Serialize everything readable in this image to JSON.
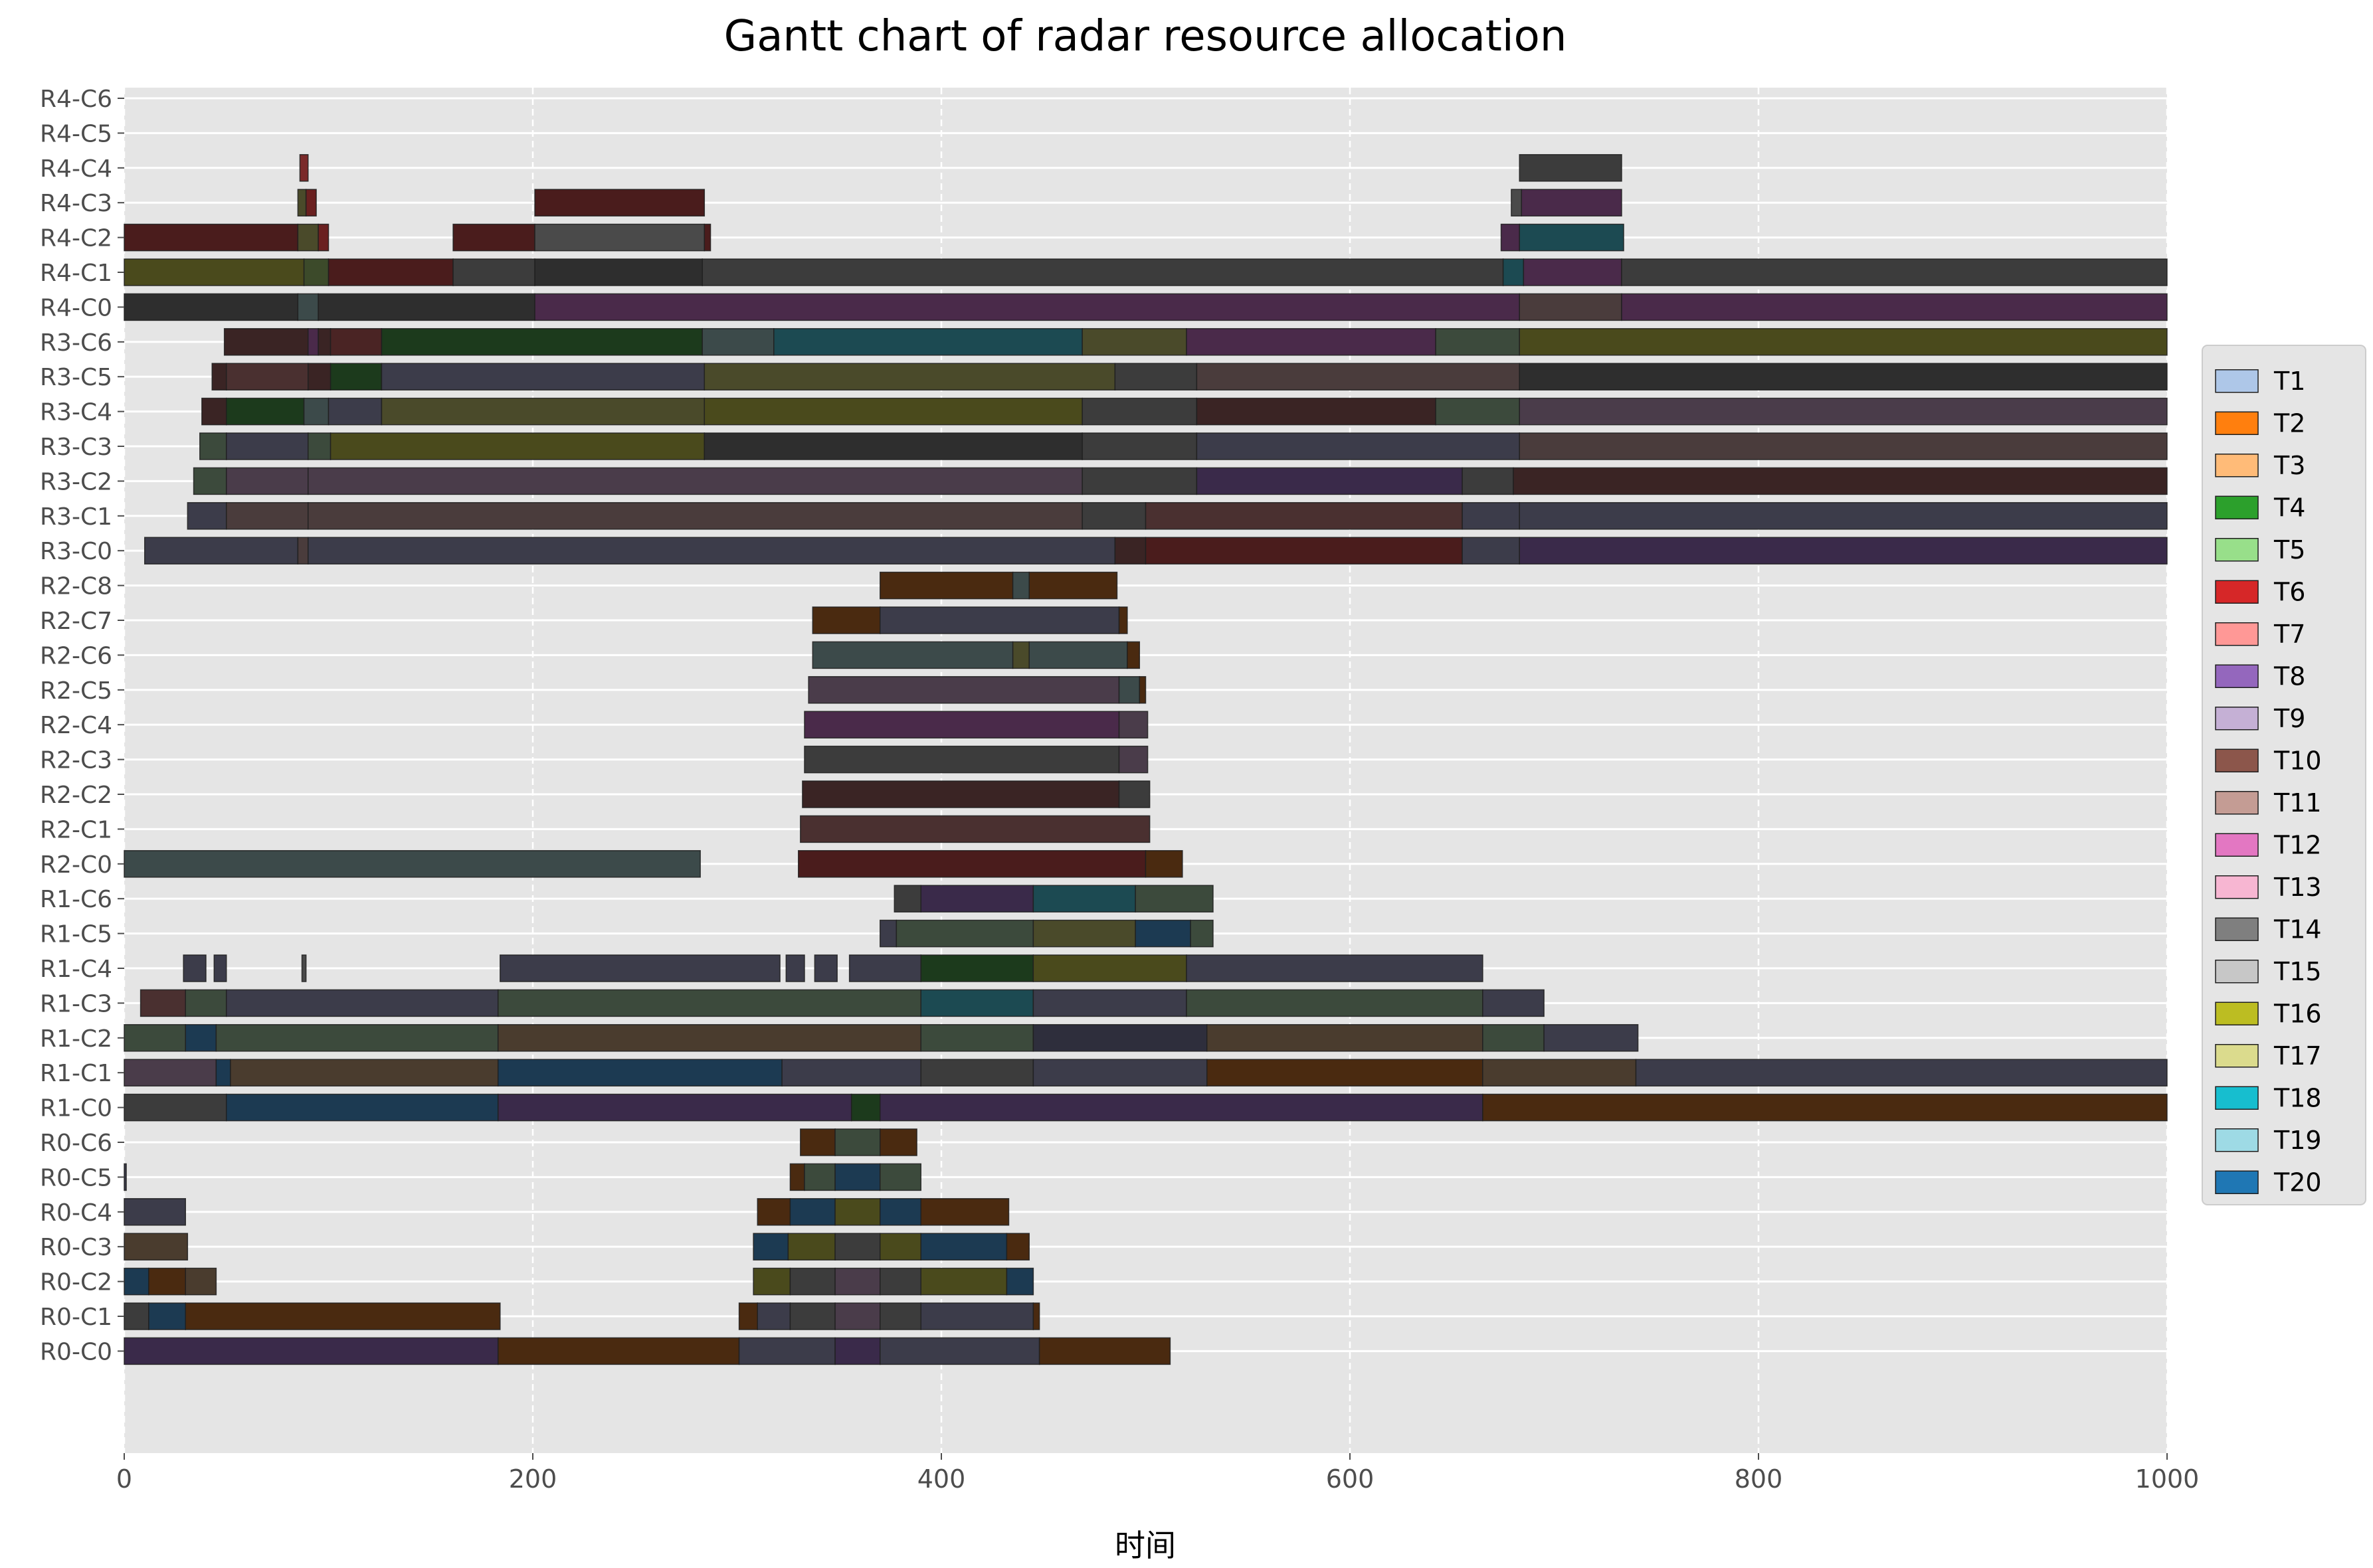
{
  "chart_data": {
    "type": "gantt",
    "title": "Gantt chart of radar resource allocation",
    "xlabel": "时间",
    "ylabel": "",
    "xlim": [
      0,
      1000
    ],
    "xticks": [
      0,
      200,
      400,
      600,
      800,
      1000
    ],
    "grid": true,
    "legend_position": "center-right",
    "rows": [
      "R4-C6",
      "R4-C5",
      "R4-C4",
      "R4-C3",
      "R4-C2",
      "R4-C1",
      "R4-C0",
      "R3-C6",
      "R3-C5",
      "R3-C4",
      "R3-C3",
      "R3-C2",
      "R3-C1",
      "R3-C0",
      "R2-C8",
      "R2-C7",
      "R2-C6",
      "R2-C5",
      "R2-C4",
      "R2-C3",
      "R2-C2",
      "R2-C1",
      "R2-C0",
      "R1-C6",
      "R1-C5",
      "R1-C4",
      "R1-C3",
      "R1-C2",
      "R1-C1",
      "R1-C0",
      "R0-C6",
      "R0-C5",
      "R0-C4",
      "R0-C3",
      "R0-C2",
      "R0-C1",
      "R0-C0"
    ],
    "legend": [
      {
        "name": "T1",
        "color": "#aec7e8"
      },
      {
        "name": "T2",
        "color": "#ff7f0e"
      },
      {
        "name": "T3",
        "color": "#ffbb78"
      },
      {
        "name": "T4",
        "color": "#2ca02c"
      },
      {
        "name": "T5",
        "color": "#98df8a"
      },
      {
        "name": "T6",
        "color": "#d62728"
      },
      {
        "name": "T7",
        "color": "#ff9896"
      },
      {
        "name": "T8",
        "color": "#9467bd"
      },
      {
        "name": "T9",
        "color": "#c5b0d5"
      },
      {
        "name": "T10",
        "color": "#8c564b"
      },
      {
        "name": "T11",
        "color": "#c49c94"
      },
      {
        "name": "T12",
        "color": "#e377c2"
      },
      {
        "name": "T13",
        "color": "#f7b6d2"
      },
      {
        "name": "T14",
        "color": "#7f7f7f"
      },
      {
        "name": "T15",
        "color": "#c7c7c7"
      },
      {
        "name": "T16",
        "color": "#bcbd22"
      },
      {
        "name": "T17",
        "color": "#dbdb8d"
      },
      {
        "name": "T18",
        "color": "#17becf"
      },
      {
        "name": "T19",
        "color": "#9edae5"
      },
      {
        "name": "T20",
        "color": "#1f77b4"
      }
    ],
    "segments": [
      [
        "R4-C4",
        86,
        90,
        "#7a2a2a"
      ],
      [
        "R4-C4",
        683,
        733,
        "#3c3c3c"
      ],
      [
        "R4-C3",
        85,
        89,
        "#4a4a2a"
      ],
      [
        "R4-C3",
        89,
        94,
        "#6a2020"
      ],
      [
        "R4-C3",
        201,
        284,
        "#4a1c1c"
      ],
      [
        "R4-C3",
        679,
        684,
        "#4a4a4a"
      ],
      [
        "R4-C3",
        684,
        733,
        "#4a2a4a"
      ],
      [
        "R4-C2",
        0,
        85,
        "#4a1c1c"
      ],
      [
        "R4-C2",
        85,
        95,
        "#4a4a2a"
      ],
      [
        "R4-C2",
        95,
        100,
        "#6a2020"
      ],
      [
        "R4-C2",
        161,
        201,
        "#4a1c1c"
      ],
      [
        "R4-C2",
        201,
        284,
        "#4a4a4a"
      ],
      [
        "R4-C2",
        284,
        287,
        "#4a1c1c"
      ],
      [
        "R4-C2",
        674,
        683,
        "#4a2a4a"
      ],
      [
        "R4-C2",
        683,
        734,
        "#1c4a52"
      ],
      [
        "R4-C1",
        0,
        88,
        "#4a4a1c"
      ],
      [
        "R4-C1",
        88,
        100,
        "#3c4a2a"
      ],
      [
        "R4-C1",
        100,
        161,
        "#4a1c1c"
      ],
      [
        "R4-C1",
        161,
        201,
        "#3c3c3c"
      ],
      [
        "R4-C1",
        201,
        283,
        "#2e2e2e"
      ],
      [
        "R4-C1",
        283,
        675,
        "#3c3c3c"
      ],
      [
        "R4-C1",
        675,
        685,
        "#1c4a52"
      ],
      [
        "R4-C1",
        685,
        733,
        "#4a2a4a"
      ],
      [
        "R4-C1",
        733,
        1000,
        "#3c3c3c"
      ],
      [
        "R4-C0",
        0,
        85,
        "#2e2e2e"
      ],
      [
        "R4-C0",
        85,
        95,
        "#3c4a4a"
      ],
      [
        "R4-C0",
        95,
        201,
        "#2e2e2e"
      ],
      [
        "R4-C0",
        201,
        683,
        "#4a2a4a"
      ],
      [
        "R4-C0",
        683,
        733,
        "#4a3c3c"
      ],
      [
        "R4-C0",
        733,
        1000,
        "#4a2a4a"
      ],
      [
        "R3-C6",
        49,
        90,
        "#3a2424"
      ],
      [
        "R3-C6",
        90,
        95,
        "#4a2a4a"
      ],
      [
        "R3-C6",
        95,
        101,
        "#3a2424"
      ],
      [
        "R3-C6",
        101,
        126,
        "#4a2424"
      ],
      [
        "R3-C6",
        126,
        283,
        "#1c3a1c"
      ],
      [
        "R3-C6",
        283,
        318,
        "#3c4a4a"
      ],
      [
        "R3-C6",
        318,
        469,
        "#1c4a52"
      ],
      [
        "R3-C6",
        469,
        520,
        "#4a4a2a"
      ],
      [
        "R3-C6",
        520,
        642,
        "#4a2a4a"
      ],
      [
        "R3-C6",
        642,
        683,
        "#3c4a3c"
      ],
      [
        "R3-C6",
        683,
        1000,
        "#4a4a1c"
      ],
      [
        "R3-C5",
        43,
        50,
        "#3a2424"
      ],
      [
        "R3-C5",
        50,
        90,
        "#4a3030"
      ],
      [
        "R3-C5",
        90,
        101,
        "#3a2424"
      ],
      [
        "R3-C5",
        101,
        126,
        "#1c3a1c"
      ],
      [
        "R3-C5",
        126,
        284,
        "#3c3c4a"
      ],
      [
        "R3-C5",
        284,
        485,
        "#4a4a2a"
      ],
      [
        "R3-C5",
        485,
        525,
        "#3c3c3c"
      ],
      [
        "R3-C5",
        525,
        683,
        "#4a3c3c"
      ],
      [
        "R3-C5",
        683,
        1000,
        "#2e2e2e"
      ],
      [
        "R3-C4",
        38,
        50,
        "#3a2424"
      ],
      [
        "R3-C4",
        50,
        88,
        "#1c3a1c"
      ],
      [
        "R3-C4",
        88,
        100,
        "#3c4a4a"
      ],
      [
        "R3-C4",
        100,
        126,
        "#3c3c4a"
      ],
      [
        "R3-C4",
        126,
        284,
        "#4a4a2a"
      ],
      [
        "R3-C4",
        284,
        469,
        "#4a4a1c"
      ],
      [
        "R3-C4",
        469,
        525,
        "#3c3c3c"
      ],
      [
        "R3-C4",
        525,
        642,
        "#3a2424"
      ],
      [
        "R3-C4",
        642,
        683,
        "#3c4a3c"
      ],
      [
        "R3-C4",
        683,
        1000,
        "#4a3c4a"
      ],
      [
        "R3-C3",
        37,
        50,
        "#3c4a3c"
      ],
      [
        "R3-C3",
        50,
        90,
        "#3c3c4a"
      ],
      [
        "R3-C3",
        90,
        101,
        "#3c4a3c"
      ],
      [
        "R3-C3",
        101,
        284,
        "#4a4a1c"
      ],
      [
        "R3-C3",
        284,
        469,
        "#2e2e2e"
      ],
      [
        "R3-C3",
        469,
        525,
        "#3c3c3c"
      ],
      [
        "R3-C3",
        525,
        683,
        "#3c3c4a"
      ],
      [
        "R3-C3",
        683,
        1000,
        "#4a3c3c"
      ],
      [
        "R3-C2",
        34,
        50,
        "#3c4a3c"
      ],
      [
        "R3-C2",
        50,
        90,
        "#4a3c4a"
      ],
      [
        "R3-C2",
        90,
        469,
        "#4a3c4a"
      ],
      [
        "R3-C2",
        469,
        525,
        "#3c3c3c"
      ],
      [
        "R3-C2",
        525,
        655,
        "#3a2a4a"
      ],
      [
        "R3-C2",
        655,
        680,
        "#3c3c3c"
      ],
      [
        "R3-C2",
        680,
        1000,
        "#3a2424"
      ],
      [
        "R3-C1",
        31,
        50,
        "#3c3c4a"
      ],
      [
        "R3-C1",
        50,
        90,
        "#4a3c3c"
      ],
      [
        "R3-C1",
        90,
        469,
        "#4a3c3c"
      ],
      [
        "R3-C1",
        469,
        500,
        "#3c3c3c"
      ],
      [
        "R3-C1",
        500,
        655,
        "#4a3030"
      ],
      [
        "R3-C1",
        655,
        683,
        "#3c3c4a"
      ],
      [
        "R3-C1",
        683,
        1000,
        "#3c3c4a"
      ],
      [
        "R3-C0",
        10,
        85,
        "#3c3c4a"
      ],
      [
        "R3-C0",
        85,
        90,
        "#4a3c3c"
      ],
      [
        "R3-C0",
        90,
        485,
        "#3c3c4a"
      ],
      [
        "R3-C0",
        485,
        500,
        "#3a2424"
      ],
      [
        "R3-C0",
        500,
        655,
        "#4a1c1c"
      ],
      [
        "R3-C0",
        655,
        683,
        "#3c3c4a"
      ],
      [
        "R3-C0",
        683,
        1000,
        "#3a2a4a"
      ],
      [
        "R2-C8",
        370,
        435,
        "#4a2a10"
      ],
      [
        "R2-C8",
        435,
        443,
        "#3c4a4a"
      ],
      [
        "R2-C8",
        443,
        486,
        "#4a2a10"
      ],
      [
        "R2-C7",
        337,
        370,
        "#4a2a10"
      ],
      [
        "R2-C7",
        370,
        487,
        "#3c3c4a"
      ],
      [
        "R2-C7",
        487,
        491,
        "#4a2a10"
      ],
      [
        "R2-C6",
        337,
        435,
        "#3c4a4a"
      ],
      [
        "R2-C6",
        435,
        443,
        "#4a4a2a"
      ],
      [
        "R2-C6",
        443,
        491,
        "#3c4a4a"
      ],
      [
        "R2-C6",
        491,
        497,
        "#4a2a10"
      ],
      [
        "R2-C5",
        335,
        487,
        "#4a3c4a"
      ],
      [
        "R2-C5",
        487,
        497,
        "#3c4a4a"
      ],
      [
        "R2-C5",
        497,
        500,
        "#4a2a10"
      ],
      [
        "R2-C4",
        333,
        487,
        "#4a2a4a"
      ],
      [
        "R2-C4",
        487,
        501,
        "#4a3c4a"
      ],
      [
        "R2-C3",
        333,
        487,
        "#3c3c3c"
      ],
      [
        "R2-C3",
        487,
        501,
        "#4a3c4a"
      ],
      [
        "R2-C2",
        332,
        487,
        "#3a2424"
      ],
      [
        "R2-C2",
        487,
        502,
        "#3c3c3c"
      ],
      [
        "R2-C1",
        331,
        502,
        "#4a3030"
      ],
      [
        "R2-C0",
        0,
        282,
        "#3c4a4a"
      ],
      [
        "R2-C0",
        330,
        500,
        "#4a1c1c"
      ],
      [
        "R2-C0",
        500,
        518,
        "#4a2a10"
      ],
      [
        "R1-C6",
        377,
        390,
        "#3c3c3c"
      ],
      [
        "R1-C6",
        390,
        445,
        "#3a2a4a"
      ],
      [
        "R1-C6",
        445,
        495,
        "#1c4a52"
      ],
      [
        "R1-C6",
        495,
        533,
        "#3c4a3c"
      ],
      [
        "R1-C5",
        370,
        378,
        "#3c3c4a"
      ],
      [
        "R1-C5",
        378,
        445,
        "#3c4a3c"
      ],
      [
        "R1-C5",
        445,
        495,
        "#4a4a2a"
      ],
      [
        "R1-C5",
        495,
        522,
        "#1c3a52"
      ],
      [
        "R1-C5",
        522,
        533,
        "#3c4a3c"
      ],
      [
        "R1-C4",
        29,
        40,
        "#3c3c4a"
      ],
      [
        "R1-C4",
        44,
        50,
        "#3c3c4a"
      ],
      [
        "R1-C4",
        87,
        89,
        "#4a4a4a"
      ],
      [
        "R1-C4",
        184,
        321,
        "#3c3c4a"
      ],
      [
        "R1-C4",
        324,
        333,
        "#3c3c4a"
      ],
      [
        "R1-C4",
        338,
        349,
        "#3c3c4a"
      ],
      [
        "R1-C4",
        355,
        390,
        "#3c3c4a"
      ],
      [
        "R1-C4",
        390,
        445,
        "#1c3a1c"
      ],
      [
        "R1-C4",
        445,
        520,
        "#4a4a1c"
      ],
      [
        "R1-C4",
        520,
        665,
        "#3c3c4a"
      ],
      [
        "R1-C3",
        8,
        30,
        "#4a3030"
      ],
      [
        "R1-C3",
        30,
        50,
        "#3c4a3c"
      ],
      [
        "R1-C3",
        50,
        183,
        "#3c3c4a"
      ],
      [
        "R1-C3",
        183,
        390,
        "#3c4a3c"
      ],
      [
        "R1-C3",
        390,
        445,
        "#1c4a52"
      ],
      [
        "R1-C3",
        445,
        520,
        "#3c3c4a"
      ],
      [
        "R1-C3",
        520,
        665,
        "#3c4a3c"
      ],
      [
        "R1-C3",
        665,
        695,
        "#3c3c4a"
      ],
      [
        "R1-C2",
        0,
        30,
        "#3c4a3c"
      ],
      [
        "R1-C2",
        30,
        45,
        "#1c3a52"
      ],
      [
        "R1-C2",
        45,
        183,
        "#3c4a3c"
      ],
      [
        "R1-C2",
        183,
        390,
        "#4a3c2e"
      ],
      [
        "R1-C2",
        390,
        445,
        "#3c4a3c"
      ],
      [
        "R1-C2",
        445,
        530,
        "#2e2e3c"
      ],
      [
        "R1-C2",
        530,
        665,
        "#4a3c2e"
      ],
      [
        "R1-C2",
        665,
        695,
        "#3c4a3c"
      ],
      [
        "R1-C2",
        695,
        741,
        "#3c3c4a"
      ],
      [
        "R1-C1",
        0,
        45,
        "#4a3c4a"
      ],
      [
        "R1-C1",
        45,
        52,
        "#1c3a52"
      ],
      [
        "R1-C1",
        52,
        183,
        "#4a3c2e"
      ],
      [
        "R1-C1",
        183,
        322,
        "#1c3a52"
      ],
      [
        "R1-C1",
        322,
        390,
        "#3c3c4a"
      ],
      [
        "R1-C1",
        390,
        445,
        "#3c3c3c"
      ],
      [
        "R1-C1",
        445,
        530,
        "#3c3c4a"
      ],
      [
        "R1-C1",
        530,
        665,
        "#4a2a10"
      ],
      [
        "R1-C1",
        665,
        740,
        "#4a3c2e"
      ],
      [
        "R1-C1",
        740,
        1000,
        "#3c3c4a"
      ],
      [
        "R1-C0",
        0,
        50,
        "#3c3c3c"
      ],
      [
        "R1-C0",
        50,
        183,
        "#1c3a52"
      ],
      [
        "R1-C0",
        183,
        356,
        "#3a2a4a"
      ],
      [
        "R1-C0",
        356,
        370,
        "#1c3a1c"
      ],
      [
        "R1-C0",
        370,
        665,
        "#3a2a4a"
      ],
      [
        "R1-C0",
        665,
        1000,
        "#4a2a10"
      ],
      [
        "R0-C6",
        331,
        348,
        "#4a2a10"
      ],
      [
        "R0-C6",
        348,
        370,
        "#3c4a3c"
      ],
      [
        "R0-C6",
        370,
        388,
        "#4a2a10"
      ],
      [
        "R0-C5",
        0,
        1,
        "#3c3c4a"
      ],
      [
        "R0-C5",
        326,
        333,
        "#4a2a10"
      ],
      [
        "R0-C5",
        333,
        348,
        "#3c4a3c"
      ],
      [
        "R0-C5",
        348,
        370,
        "#1c3a52"
      ],
      [
        "R0-C5",
        370,
        390,
        "#3c4a3c"
      ],
      [
        "R0-C4",
        0,
        30,
        "#3c3c4a"
      ],
      [
        "R0-C4",
        310,
        326,
        "#4a2a10"
      ],
      [
        "R0-C4",
        326,
        348,
        "#1c3a52"
      ],
      [
        "R0-C4",
        348,
        370,
        "#4a4a1c"
      ],
      [
        "R0-C4",
        370,
        390,
        "#1c3a52"
      ],
      [
        "R0-C4",
        390,
        433,
        "#4a2a10"
      ],
      [
        "R0-C3",
        0,
        31,
        "#4a3c2e"
      ],
      [
        "R0-C3",
        308,
        325,
        "#1c3a52"
      ],
      [
        "R0-C3",
        325,
        348,
        "#4a4a1c"
      ],
      [
        "R0-C3",
        348,
        370,
        "#3c3c3c"
      ],
      [
        "R0-C3",
        370,
        390,
        "#4a4a1c"
      ],
      [
        "R0-C3",
        390,
        432,
        "#1c3a52"
      ],
      [
        "R0-C3",
        432,
        443,
        "#4a2a10"
      ],
      [
        "R0-C2",
        0,
        12,
        "#1c3a52"
      ],
      [
        "R0-C2",
        12,
        30,
        "#4a2a10"
      ],
      [
        "R0-C2",
        30,
        45,
        "#4a3c2e"
      ],
      [
        "R0-C2",
        308,
        326,
        "#4a4a1c"
      ],
      [
        "R0-C2",
        326,
        348,
        "#3c3c3c"
      ],
      [
        "R0-C2",
        348,
        370,
        "#4a3c4a"
      ],
      [
        "R0-C2",
        370,
        390,
        "#3c3c3c"
      ],
      [
        "R0-C2",
        390,
        432,
        "#4a4a1c"
      ],
      [
        "R0-C2",
        432,
        445,
        "#1c3a52"
      ],
      [
        "R0-C1",
        0,
        12,
        "#3c3c3c"
      ],
      [
        "R0-C1",
        12,
        30,
        "#1c3a52"
      ],
      [
        "R0-C1",
        30,
        184,
        "#4a2a10"
      ],
      [
        "R0-C1",
        301,
        310,
        "#4a2a10"
      ],
      [
        "R0-C1",
        310,
        326,
        "#3c3c4a"
      ],
      [
        "R0-C1",
        326,
        348,
        "#3c3c3c"
      ],
      [
        "R0-C1",
        348,
        370,
        "#4a3c4a"
      ],
      [
        "R0-C1",
        370,
        390,
        "#3c3c3c"
      ],
      [
        "R0-C1",
        390,
        445,
        "#3c3c4a"
      ],
      [
        "R0-C1",
        445,
        448,
        "#4a2a10"
      ],
      [
        "R0-C0",
        0,
        183,
        "#3a2a4a"
      ],
      [
        "R0-C0",
        183,
        301,
        "#4a2a10"
      ],
      [
        "R0-C0",
        301,
        348,
        "#3c3c4a"
      ],
      [
        "R0-C0",
        348,
        370,
        "#3a2a4a"
      ],
      [
        "R0-C0",
        370,
        448,
        "#3c3c4a"
      ],
      [
        "R0-C0",
        448,
        512,
        "#4a2a10"
      ]
    ]
  }
}
